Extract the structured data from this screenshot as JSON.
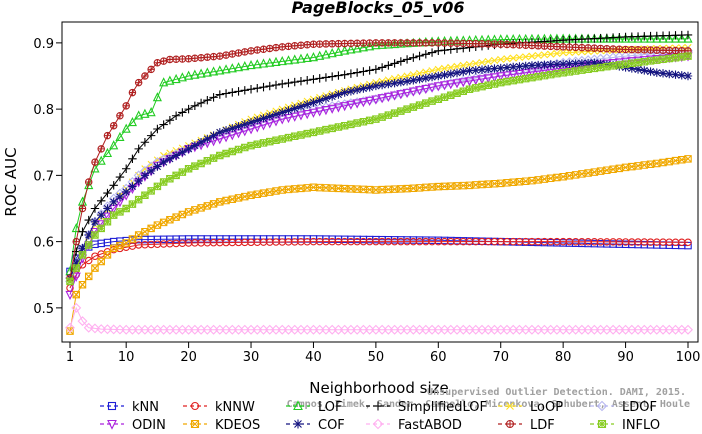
{
  "chart_data": {
    "type": "line",
    "title": "PageBlocks_05_v06",
    "xlabel": "Neighborhood size",
    "ylabel": "ROC AUC",
    "xlim": [
      1,
      100
    ],
    "ylim": [
      0.45,
      0.93
    ],
    "x_ticks": [
      "1",
      "10",
      "20",
      "30",
      "40",
      "50",
      "60",
      "70",
      "80",
      "90",
      "100"
    ],
    "y_ticks": [
      "0.5",
      "0.6",
      "0.7",
      "0.8",
      "0.9"
    ],
    "grid": false,
    "legend_position": "bottom",
    "credit_line1": "Unsupervised Outlier Detection. DAMI, 2015.",
    "credit_line2": "Campos, Zimek, Sander, Campello, Micenkova, Schubert, Assent, Houle",
    "series": [
      {
        "name": "kNN",
        "color": "#1f1fd6",
        "marker": "square",
        "points": [
          [
            1,
            0.555
          ],
          [
            2,
            0.575
          ],
          [
            3,
            0.588
          ],
          [
            5,
            0.596
          ],
          [
            8,
            0.6
          ],
          [
            12,
            0.603
          ],
          [
            20,
            0.604
          ],
          [
            40,
            0.604
          ],
          [
            60,
            0.602
          ],
          [
            80,
            0.598
          ],
          [
            100,
            0.594
          ]
        ]
      },
      {
        "name": "kNNW",
        "color": "#e02020",
        "marker": "circle",
        "points": [
          [
            1,
            0.53
          ],
          [
            2,
            0.55
          ],
          [
            3,
            0.565
          ],
          [
            5,
            0.578
          ],
          [
            8,
            0.588
          ],
          [
            12,
            0.595
          ],
          [
            20,
            0.598
          ],
          [
            40,
            0.6
          ],
          [
            60,
            0.6
          ],
          [
            80,
            0.6
          ],
          [
            100,
            0.599
          ]
        ]
      },
      {
        "name": "LOF",
        "color": "#22cc22",
        "marker": "triangle",
        "points": [
          [
            1,
            0.555
          ],
          [
            2,
            0.62
          ],
          [
            3,
            0.66
          ],
          [
            5,
            0.71
          ],
          [
            8,
            0.745
          ],
          [
            10,
            0.77
          ],
          [
            12,
            0.79
          ],
          [
            14,
            0.795
          ],
          [
            16,
            0.84
          ],
          [
            20,
            0.85
          ],
          [
            25,
            0.858
          ],
          [
            30,
            0.866
          ],
          [
            35,
            0.872
          ],
          [
            40,
            0.878
          ],
          [
            45,
            0.888
          ],
          [
            50,
            0.896
          ],
          [
            60,
            0.902
          ],
          [
            70,
            0.905
          ],
          [
            80,
            0.906
          ],
          [
            90,
            0.906
          ],
          [
            100,
            0.906
          ]
        ]
      },
      {
        "name": "SimplifiedLOF",
        "color": "#000000",
        "marker": "plus",
        "points": [
          [
            1,
            0.545
          ],
          [
            2,
            0.585
          ],
          [
            3,
            0.615
          ],
          [
            5,
            0.65
          ],
          [
            8,
            0.685
          ],
          [
            10,
            0.71
          ],
          [
            12,
            0.74
          ],
          [
            15,
            0.77
          ],
          [
            18,
            0.79
          ],
          [
            21,
            0.805
          ],
          [
            25,
            0.822
          ],
          [
            30,
            0.83
          ],
          [
            35,
            0.838
          ],
          [
            40,
            0.845
          ],
          [
            45,
            0.852
          ],
          [
            50,
            0.86
          ],
          [
            55,
            0.875
          ],
          [
            60,
            0.888
          ],
          [
            70,
            0.898
          ],
          [
            80,
            0.904
          ],
          [
            90,
            0.909
          ],
          [
            100,
            0.912
          ]
        ]
      },
      {
        "name": "LoOP",
        "color": "#ffe020",
        "marker": "cross",
        "points": [
          [
            1,
            0.54
          ],
          [
            3,
            0.59
          ],
          [
            5,
            0.625
          ],
          [
            8,
            0.66
          ],
          [
            10,
            0.68
          ],
          [
            13,
            0.71
          ],
          [
            16,
            0.73
          ],
          [
            20,
            0.745
          ],
          [
            25,
            0.765
          ],
          [
            30,
            0.785
          ],
          [
            35,
            0.8
          ],
          [
            40,
            0.815
          ],
          [
            45,
            0.828
          ],
          [
            50,
            0.84
          ],
          [
            60,
            0.86
          ],
          [
            70,
            0.875
          ],
          [
            80,
            0.885
          ],
          [
            90,
            0.89
          ],
          [
            100,
            0.893
          ]
        ]
      },
      {
        "name": "LDOF",
        "color": "#b8b8f0",
        "marker": "diamond",
        "points": [
          [
            1,
            0.54
          ],
          [
            3,
            0.59
          ],
          [
            5,
            0.63
          ],
          [
            8,
            0.665
          ],
          [
            10,
            0.68
          ],
          [
            12,
            0.7
          ],
          [
            15,
            0.72
          ],
          [
            20,
            0.74
          ],
          [
            25,
            0.76
          ],
          [
            30,
            0.775
          ],
          [
            35,
            0.79
          ],
          [
            40,
            0.8
          ],
          [
            50,
            0.815
          ],
          [
            60,
            0.835
          ],
          [
            70,
            0.855
          ],
          [
            80,
            0.87
          ],
          [
            90,
            0.88
          ],
          [
            100,
            0.888
          ]
        ]
      },
      {
        "name": "ODIN",
        "color": "#aa20dd",
        "marker": "triangle-down",
        "points": [
          [
            1,
            0.52
          ],
          [
            3,
            0.575
          ],
          [
            5,
            0.615
          ],
          [
            8,
            0.65
          ],
          [
            10,
            0.67
          ],
          [
            12,
            0.69
          ],
          [
            15,
            0.715
          ],
          [
            20,
            0.74
          ],
          [
            25,
            0.755
          ],
          [
            30,
            0.77
          ],
          [
            35,
            0.785
          ],
          [
            40,
            0.795
          ],
          [
            45,
            0.805
          ],
          [
            50,
            0.815
          ],
          [
            60,
            0.835
          ],
          [
            70,
            0.85
          ],
          [
            80,
            0.862
          ],
          [
            90,
            0.872
          ],
          [
            100,
            0.88
          ]
        ]
      },
      {
        "name": "KDEOS",
        "color": "#f0a800",
        "marker": "boxcross",
        "points": [
          [
            1,
            0.465
          ],
          [
            2,
            0.52
          ],
          [
            3,
            0.535
          ],
          [
            5,
            0.56
          ],
          [
            8,
            0.59
          ],
          [
            10,
            0.598
          ],
          [
            12,
            0.61
          ],
          [
            15,
            0.625
          ],
          [
            20,
            0.645
          ],
          [
            25,
            0.66
          ],
          [
            30,
            0.67
          ],
          [
            35,
            0.678
          ],
          [
            40,
            0.682
          ],
          [
            45,
            0.68
          ],
          [
            50,
            0.678
          ],
          [
            55,
            0.68
          ],
          [
            60,
            0.683
          ],
          [
            65,
            0.685
          ],
          [
            70,
            0.688
          ],
          [
            75,
            0.692
          ],
          [
            80,
            0.698
          ],
          [
            85,
            0.705
          ],
          [
            90,
            0.712
          ],
          [
            95,
            0.718
          ],
          [
            100,
            0.725
          ]
        ]
      },
      {
        "name": "COF",
        "color": "#141480",
        "marker": "star",
        "points": [
          [
            1,
            0.545
          ],
          [
            3,
            0.59
          ],
          [
            5,
            0.63
          ],
          [
            8,
            0.66
          ],
          [
            10,
            0.675
          ],
          [
            13,
            0.7
          ],
          [
            16,
            0.72
          ],
          [
            20,
            0.74
          ],
          [
            25,
            0.765
          ],
          [
            30,
            0.78
          ],
          [
            35,
            0.795
          ],
          [
            40,
            0.81
          ],
          [
            45,
            0.825
          ],
          [
            50,
            0.835
          ],
          [
            55,
            0.842
          ],
          [
            60,
            0.85
          ],
          [
            65,
            0.858
          ],
          [
            70,
            0.862
          ],
          [
            75,
            0.866
          ],
          [
            80,
            0.868
          ],
          [
            85,
            0.87
          ],
          [
            88,
            0.866
          ],
          [
            92,
            0.86
          ],
          [
            95,
            0.855
          ],
          [
            100,
            0.85
          ]
        ]
      },
      {
        "name": "FastABOD",
        "color": "#ffb0f0",
        "marker": "diamond",
        "points": [
          [
            1,
            0.47
          ],
          [
            2,
            0.5
          ],
          [
            3,
            0.48
          ],
          [
            4,
            0.47
          ],
          [
            6,
            0.468
          ],
          [
            10,
            0.467
          ],
          [
            30,
            0.467
          ],
          [
            60,
            0.467
          ],
          [
            100,
            0.467
          ]
        ]
      },
      {
        "name": "LDF",
        "color": "#b02020",
        "marker": "circleplus",
        "points": [
          [
            1,
            0.545
          ],
          [
            2,
            0.6
          ],
          [
            3,
            0.65
          ],
          [
            4,
            0.69
          ],
          [
            5,
            0.72
          ],
          [
            6,
            0.74
          ],
          [
            7,
            0.76
          ],
          [
            8,
            0.775
          ],
          [
            9,
            0.79
          ],
          [
            10,
            0.805
          ],
          [
            11,
            0.825
          ],
          [
            12,
            0.84
          ],
          [
            13,
            0.85
          ],
          [
            14,
            0.86
          ],
          [
            15,
            0.87
          ],
          [
            17,
            0.875
          ],
          [
            20,
            0.876
          ],
          [
            25,
            0.88
          ],
          [
            30,
            0.888
          ],
          [
            35,
            0.894
          ],
          [
            40,
            0.898
          ],
          [
            50,
            0.9
          ],
          [
            60,
            0.9
          ],
          [
            70,
            0.898
          ],
          [
            80,
            0.894
          ],
          [
            90,
            0.89
          ],
          [
            100,
            0.888
          ]
        ]
      },
      {
        "name": "INFLO",
        "color": "#88cc22",
        "marker": "boxstar",
        "points": [
          [
            1,
            0.54
          ],
          [
            3,
            0.58
          ],
          [
            5,
            0.61
          ],
          [
            8,
            0.64
          ],
          [
            10,
            0.65
          ],
          [
            13,
            0.67
          ],
          [
            16,
            0.69
          ],
          [
            20,
            0.71
          ],
          [
            25,
            0.73
          ],
          [
            30,
            0.745
          ],
          [
            35,
            0.755
          ],
          [
            40,
            0.765
          ],
          [
            45,
            0.775
          ],
          [
            50,
            0.785
          ],
          [
            55,
            0.8
          ],
          [
            60,
            0.815
          ],
          [
            65,
            0.83
          ],
          [
            70,
            0.84
          ],
          [
            80,
            0.855
          ],
          [
            90,
            0.868
          ],
          [
            100,
            0.88
          ]
        ]
      }
    ],
    "legend_order": [
      "kNN",
      "kNNW",
      "LOF",
      "SimplifiedLOF",
      "LoOP",
      "LDOF",
      "ODIN",
      "KDEOS",
      "COF",
      "FastABOD",
      "LDF",
      "INFLO"
    ]
  }
}
